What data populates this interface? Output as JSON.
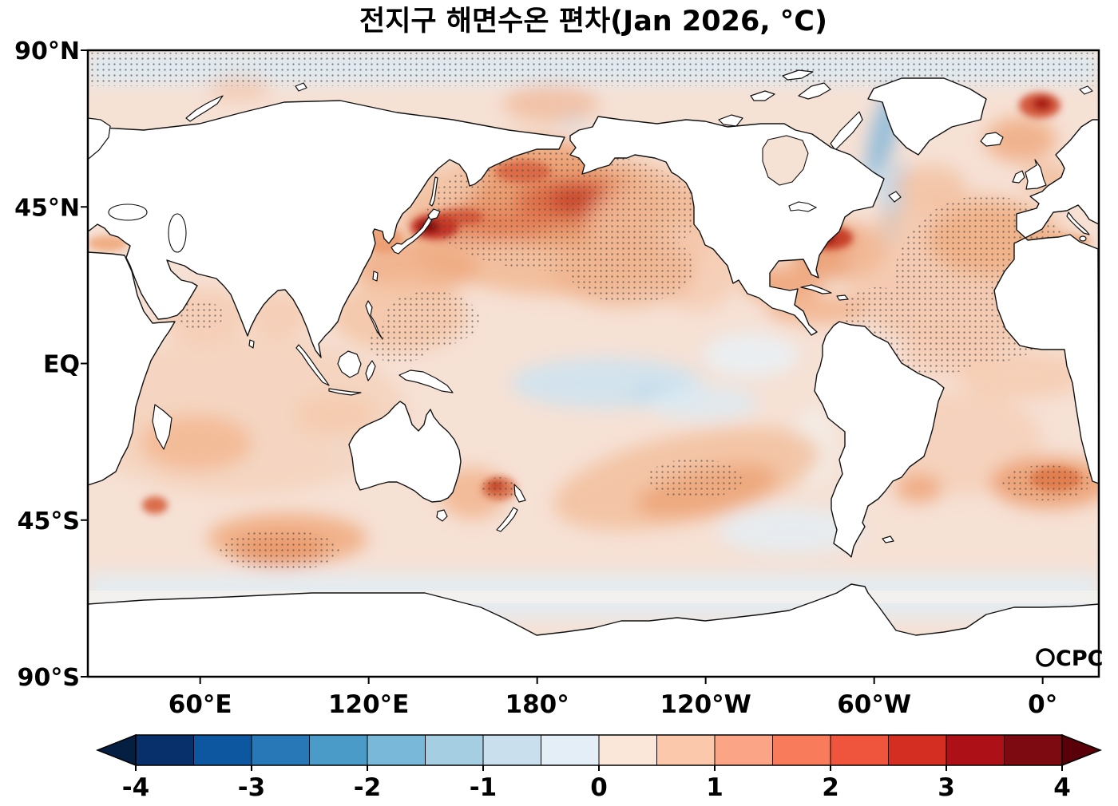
{
  "title": "전지구 해면수온 편차(Jan 2026, °C)",
  "logo": {
    "text": "CPC",
    "icon": "globe-ring-icon"
  },
  "axes": {
    "yticks": [
      {
        "label": "90°N",
        "lat": 90
      },
      {
        "label": "45°N",
        "lat": 45
      },
      {
        "label": "EQ",
        "lat": 0
      },
      {
        "label": "45°S",
        "lat": -45
      },
      {
        "label": "90°S",
        "lat": -90
      }
    ],
    "xticks": [
      {
        "label": "60°E",
        "lon": 60
      },
      {
        "label": "120°E",
        "lon": 120
      },
      {
        "label": "180°",
        "lon": 180
      },
      {
        "label": "120°W",
        "lon": 240
      },
      {
        "label": "60°W",
        "lon": 300
      },
      {
        "label": "0°",
        "lon": 0
      }
    ]
  },
  "colorbar": {
    "min": -4,
    "max": 4,
    "tick_values": [
      -4,
      -3,
      -2,
      -1,
      0,
      1,
      2,
      3,
      4
    ],
    "tick_labels": [
      "-4",
      "-3",
      "-2",
      "-1",
      "0",
      "1",
      "2",
      "3",
      "4"
    ],
    "segment_colors": [
      "#08306b",
      "#0d57a1",
      "#2878b8",
      "#4b9bc9",
      "#7ab8d9",
      "#a6cee3",
      "#c9dfee",
      "#e4eef6",
      "#fbe7da",
      "#fbc8ac",
      "#fba486",
      "#f87c5c",
      "#ef553c",
      "#d42d21",
      "#ad1016",
      "#7c0a10"
    ],
    "under_color": "#041f42",
    "over_color": "#5a0009"
  },
  "chart_data": {
    "type": "heatmap",
    "title": "전지구 해면수온 편차(Jan 2026, °C)",
    "variable": "global sea surface temperature anomaly",
    "period": "Jan 2026",
    "units": "°C",
    "projection": "equirectangular world map centered on the Pacific (left edge 20°E, wrapping east to 20°E)",
    "lat_ticks": [
      "90°N",
      "45°N",
      "EQ",
      "45°S",
      "90°S"
    ],
    "lon_ticks": [
      "60°E",
      "120°E",
      "180°",
      "120°W",
      "60°W",
      "0°"
    ],
    "colorbar_range": [
      -4,
      4
    ],
    "colorbar_step": 0.5,
    "legend_position": "bottom horizontal with pointed under/over arrows",
    "background_field_c": 0.4,
    "notable_anomalies": [
      {
        "region": "Sea of Japan / east of Japan",
        "anomaly_c": 3.5
      },
      {
        "region": "Central and western North Pacific (stippled)",
        "anomaly_c": 2.5
      },
      {
        "region": "Bering Sea / south of Aleutians",
        "anomaly_c": 1.5
      },
      {
        "region": "Gulf Stream off northeast United States",
        "anomaly_c": 3.0
      },
      {
        "region": "Gulf of Mexico and Caribbean",
        "anomaly_c": 1.0
      },
      {
        "region": "Central North Atlantic (stippled)",
        "anomaly_c": 1.5
      },
      {
        "region": "Barents Sea",
        "anomaly_c": 2.5
      },
      {
        "region": "Norwegian Sea",
        "anomaly_c": 1.0
      },
      {
        "region": "Equatorial central Pacific",
        "anomaly_c": -0.5
      },
      {
        "region": "East Greenland / Irminger Sea current",
        "anomaly_c": -1.0
      },
      {
        "region": "Southern Ocean band near 60°S",
        "anomaly_c": -0.3
      },
      {
        "region": "South-central Pacific near 40°S",
        "anomaly_c": 1.5
      },
      {
        "region": "South Indian Ocean near 45°S (stippled)",
        "anomaly_c": 1.5
      },
      {
        "region": "Southwest of Australia (stippled)",
        "anomaly_c": 1.5
      },
      {
        "region": "Southeast of New Zealand",
        "anomaly_c": 2.0
      },
      {
        "region": "South Atlantic near 45°S (stippled)",
        "anomaly_c": 2.0
      },
      {
        "region": "Arabian Sea and Bay of Bengal",
        "anomaly_c": 0.8
      },
      {
        "region": "Arctic margin band (stippled)",
        "anomaly_c": -0.3
      }
    ],
    "stippling": "dense dot overlay marks highlighted regions (Arctic band, North Pacific, North Atlantic, South Indian, South Atlantic, SE of New Zealand)",
    "source_logo": "CPC"
  }
}
